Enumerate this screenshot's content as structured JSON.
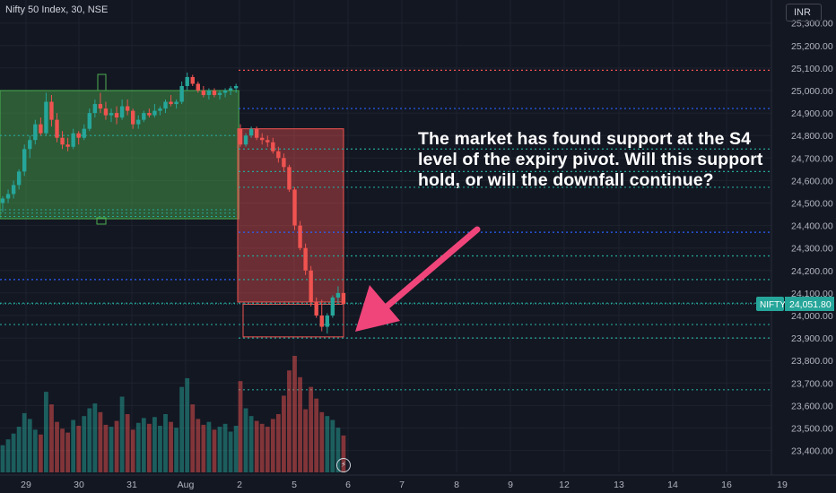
{
  "header": {
    "symbol_title": "Nifty 50 Index, 30, NSE",
    "currency": "INR"
  },
  "annotation": {
    "text": "The market has found support at the S4 level of the expiry pivot. Will this support hold, or will the downfall continue?"
  },
  "price_label": {
    "symbol": "NIFTY",
    "value": "24,051.80"
  },
  "colors": {
    "background": "#131722",
    "up": "#26a69a",
    "down": "#ef5350",
    "arrow": "#f0457a",
    "green_box": "#4caf50",
    "red_box": "#ef5350",
    "blue_dotted": "#2962ff",
    "teal_dotted": "#26a69a"
  },
  "icons": {
    "flash": "lightning-icon"
  },
  "chart_data": {
    "type": "candlestick",
    "title": "",
    "xlabel": "",
    "ylabel": "",
    "ylim": [
      23300,
      25300
    ],
    "y_ticks": [
      23400,
      23500,
      23600,
      23700,
      23800,
      23900,
      24000,
      24100,
      24200,
      24300,
      24400,
      24500,
      24600,
      24700,
      24800,
      24900,
      25000,
      25100,
      25200,
      25300
    ],
    "y_tick_labels": [
      "23,400.00",
      "23,500.00",
      "23,600.00",
      "23,700.00",
      "23,800.00",
      "23,900.00",
      "24,000.00",
      "24,100.00",
      "24,200.00",
      "24,300.00",
      "24,400.00",
      "24,500.00",
      "24,600.00",
      "24,700.00",
      "24,800.00",
      "24,900.00",
      "25,000.00",
      "25,100.00",
      "25,200.00",
      "25,300.00"
    ],
    "x_tick_labels": [
      "29",
      "30",
      "31",
      "Aug",
      "2",
      "5",
      "6",
      "7",
      "8",
      "9",
      "12",
      "13",
      "14",
      "16",
      "19"
    ],
    "last_price": 24051.8,
    "levels": [
      {
        "price": 25090,
        "style": "dotted",
        "color": "#ef5350",
        "scope": "week"
      },
      {
        "price": 24920,
        "style": "dotted",
        "color": "#2962ff",
        "scope": "week"
      },
      {
        "price": 24740,
        "style": "dotted",
        "color": "#26a69a",
        "scope": "week"
      },
      {
        "price": 24640,
        "style": "dotted",
        "color": "#26a69a",
        "scope": "week"
      },
      {
        "price": 24570,
        "style": "dotted",
        "color": "#26a69a",
        "scope": "week"
      },
      {
        "price": 24370,
        "style": "dotted",
        "color": "#2962ff",
        "scope": "week"
      },
      {
        "price": 24265,
        "style": "dotted",
        "color": "#26a69a",
        "scope": "week"
      },
      {
        "price": 24160,
        "style": "dotted",
        "color": "#26a69a",
        "scope": "week"
      },
      {
        "price": 24055,
        "style": "dotted",
        "color": "#26a69a",
        "scope": "week"
      },
      {
        "price": 23960,
        "style": "dotted",
        "color": "#26a69a",
        "scope": "week"
      },
      {
        "price": 23900,
        "style": "dotted",
        "color": "#26a69a",
        "scope": "week"
      },
      {
        "price": 23670,
        "style": "dotted",
        "color": "#26a69a",
        "scope": "week"
      },
      {
        "price": 24800,
        "style": "dotted",
        "color": "#26a69a",
        "scope": "prior"
      },
      {
        "price": 24160,
        "style": "dotted",
        "color": "#2962ff",
        "scope": "prior"
      },
      {
        "price": 24055,
        "style": "dotted",
        "color": "#26a69a",
        "scope": "prior"
      },
      {
        "price": 23960,
        "style": "dotted",
        "color": "#26a69a",
        "scope": "prior"
      }
    ],
    "zones": [
      {
        "name": "",
        "type": "up",
        "top": 25000,
        "bottom": 24430,
        "start_bar": 0,
        "end_bar": 43
      },
      {
        "name": "",
        "type": "down",
        "top": 24830,
        "bottom": 24060,
        "start_bar": 44,
        "end_bar": 63
      },
      {
        "name": "",
        "type": "outline",
        "top": 24050,
        "bottom": 23905,
        "start_bar": 45,
        "end_bar": 63
      }
    ],
    "candles": [
      [
        24500,
        24530,
        24460,
        24520
      ],
      [
        24520,
        24560,
        24500,
        24540
      ],
      [
        24540,
        24600,
        24520,
        24580
      ],
      [
        24580,
        24650,
        24560,
        24640
      ],
      [
        24640,
        24760,
        24620,
        24740
      ],
      [
        24740,
        24800,
        24700,
        24780
      ],
      [
        24780,
        24870,
        24760,
        24850
      ],
      [
        24850,
        24880,
        24800,
        24810
      ],
      [
        24810,
        24990,
        24800,
        24950
      ],
      [
        24950,
        24980,
        24840,
        24870
      ],
      [
        24870,
        24900,
        24770,
        24790
      ],
      [
        24790,
        24820,
        24740,
        24760
      ],
      [
        24760,
        24790,
        24730,
        24750
      ],
      [
        24750,
        24830,
        24740,
        24810
      ],
      [
        24810,
        24820,
        24760,
        24790
      ],
      [
        24790,
        24850,
        24780,
        24830
      ],
      [
        24830,
        24920,
        24820,
        24900
      ],
      [
        24900,
        24960,
        24880,
        24940
      ],
      [
        24940,
        24990,
        24900,
        24920
      ],
      [
        24920,
        24950,
        24870,
        24890
      ],
      [
        24890,
        24920,
        24860,
        24900
      ],
      [
        24900,
        24930,
        24850,
        24880
      ],
      [
        24880,
        24960,
        24870,
        24930
      ],
      [
        24930,
        24960,
        24890,
        24910
      ],
      [
        24910,
        24920,
        24830,
        24850
      ],
      [
        24850,
        24890,
        24830,
        24870
      ],
      [
        24870,
        24910,
        24860,
        24900
      ],
      [
        24900,
        24920,
        24880,
        24890
      ],
      [
        24890,
        24940,
        24880,
        24910
      ],
      [
        24910,
        24930,
        24890,
        24920
      ],
      [
        24920,
        24960,
        24900,
        24950
      ],
      [
        24950,
        24980,
        24930,
        24940
      ],
      [
        24940,
        24960,
        24920,
        24950
      ],
      [
        24950,
        25040,
        24940,
        25020
      ],
      [
        25020,
        25080,
        25000,
        25060
      ],
      [
        25060,
        25070,
        25020,
        25030
      ],
      [
        25030,
        25040,
        24990,
        25000
      ],
      [
        25000,
        25020,
        24970,
        24980
      ],
      [
        24980,
        25010,
        24960,
        25000
      ],
      [
        25000,
        25010,
        24970,
        24980
      ],
      [
        24980,
        25000,
        24960,
        24990
      ],
      [
        24990,
        25010,
        24970,
        25000
      ],
      [
        25000,
        25020,
        24980,
        25010
      ],
      [
        25010,
        25030,
        24990,
        25020
      ],
      [
        24830,
        24850,
        24750,
        24760
      ],
      [
        24760,
        24810,
        24750,
        24800
      ],
      [
        24800,
        24840,
        24790,
        24830
      ],
      [
        24830,
        24840,
        24780,
        24790
      ],
      [
        24790,
        24810,
        24760,
        24780
      ],
      [
        24780,
        24800,
        24750,
        24770
      ],
      [
        24770,
        24790,
        24720,
        24730
      ],
      [
        24730,
        24750,
        24680,
        24700
      ],
      [
        24700,
        24720,
        24640,
        24660
      ],
      [
        24660,
        24670,
        24550,
        24560
      ],
      [
        24560,
        24570,
        24380,
        24400
      ],
      [
        24400,
        24420,
        24290,
        24300
      ],
      [
        24300,
        24320,
        24180,
        24200
      ],
      [
        24200,
        24220,
        24040,
        24060
      ],
      [
        24060,
        24080,
        23990,
        24000
      ],
      [
        24000,
        24070,
        23930,
        23950
      ],
      [
        23950,
        24010,
        23920,
        24000
      ],
      [
        24000,
        24090,
        23990,
        24080
      ],
      [
        24080,
        24130,
        24060,
        24100
      ],
      [
        24100,
        24120,
        24040,
        24052
      ]
    ],
    "volume": [
      28,
      34,
      40,
      47,
      61,
      55,
      44,
      39,
      83,
      70,
      52,
      45,
      41,
      54,
      48,
      58,
      66,
      71,
      62,
      49,
      47,
      53,
      78,
      60,
      44,
      51,
      56,
      50,
      57,
      48,
      60,
      52,
      46,
      88,
      97,
      70,
      55,
      49,
      52,
      44,
      47,
      50,
      42,
      48,
      94,
      66,
      58,
      53,
      50,
      47,
      55,
      60,
      79,
      105,
      120,
      98,
      65,
      88,
      76,
      62,
      58,
      54,
      46,
      38
    ]
  }
}
